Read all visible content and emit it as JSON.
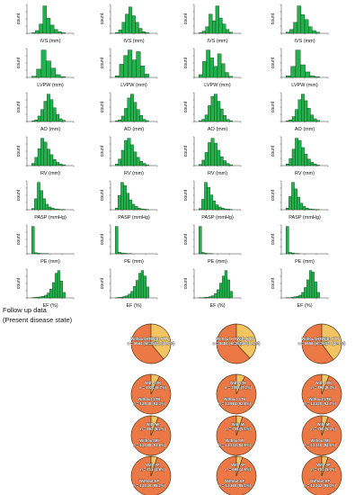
{
  "follow_up": {
    "line1": "Follow up data",
    "line2": "(Present disease state)"
  },
  "colors": {
    "histogram_fill": "#22b14c",
    "histogram_stroke": "#0a3d15",
    "pie_orange": "#ec7845",
    "pie_yellow": "#f2c462",
    "pie_stroke": "#5a3b1a",
    "label_text": "#ffffff"
  },
  "chart_data": {
    "type": "histogram-grid",
    "ylabel": "count",
    "columns": 4,
    "rows": [
      {
        "xlabel": "IVS (mm)",
        "col_heights": [
          [
            2,
            10,
            34,
            100,
            55,
            30,
            14,
            6,
            2
          ],
          [
            3,
            12,
            40,
            70,
            96,
            64,
            40,
            18,
            6,
            2
          ],
          [
            2,
            8,
            24,
            70,
            46,
            100,
            56,
            34,
            14,
            4
          ],
          [
            4,
            14,
            40,
            100,
            68,
            50,
            24,
            10,
            4
          ]
        ]
      },
      {
        "xlabel": "LVPW (mm)",
        "col_heights": [
          [
            4,
            30,
            100,
            60,
            34,
            10,
            3
          ],
          [
            6,
            48,
            80,
            100,
            64,
            94,
            42,
            12
          ],
          [
            10,
            58,
            100,
            72,
            40,
            86,
            50,
            18,
            4
          ],
          [
            6,
            40,
            100,
            46,
            20,
            6,
            2
          ]
        ]
      },
      {
        "xlabel": "AO (mm)",
        "col_heights": [
          [
            2,
            6,
            20,
            44,
            74,
            100,
            80,
            50,
            26,
            10,
            4
          ],
          [
            2,
            6,
            20,
            48,
            86,
            100,
            70,
            44,
            22,
            8,
            3
          ],
          [
            3,
            8,
            24,
            58,
            92,
            100,
            74,
            46,
            22,
            8,
            3
          ],
          [
            2,
            6,
            18,
            44,
            80,
            100,
            76,
            48,
            24,
            10,
            4
          ]
        ]
      },
      {
        "xlabel": "RV (mm)",
        "col_heights": [
          [
            8,
            30,
            62,
            100,
            86,
            60,
            40,
            22,
            12,
            6,
            3
          ],
          [
            6,
            24,
            56,
            92,
            100,
            76,
            50,
            30,
            16,
            8,
            3
          ],
          [
            4,
            20,
            48,
            84,
            100,
            82,
            56,
            32,
            18,
            8,
            3
          ],
          [
            6,
            26,
            60,
            100,
            92,
            66,
            42,
            24,
            12,
            6,
            2
          ]
        ]
      },
      {
        "xlabel": "PASP (mmHg)",
        "col_heights": [
          [
            4,
            40,
            100,
            70,
            40,
            20,
            10,
            6,
            3,
            2,
            1,
            1
          ],
          [
            6,
            52,
            100,
            88,
            60,
            36,
            20,
            12,
            6,
            3,
            2,
            1
          ],
          [
            4,
            38,
            100,
            82,
            54,
            32,
            18,
            10,
            6,
            3,
            2,
            1
          ],
          [
            6,
            48,
            100,
            76,
            46,
            24,
            12,
            6,
            3,
            2,
            1,
            1
          ]
        ]
      },
      {
        "xlabel": "PE (mm)",
        "col_heights": [
          [
            100,
            4,
            2,
            1,
            1,
            1,
            0,
            0,
            0,
            0,
            0,
            0
          ],
          [
            100,
            6,
            3,
            2,
            1,
            1,
            0,
            0,
            0,
            0,
            0,
            0
          ],
          [
            100,
            5,
            2,
            1,
            1,
            0,
            0,
            0,
            0,
            0,
            0,
            0
          ],
          [
            100,
            5,
            3,
            1,
            1,
            0,
            0,
            0,
            0,
            0,
            0,
            0
          ]
        ]
      },
      {
        "xlabel": "EF (%)",
        "col_heights": [
          [
            1,
            2,
            3,
            4,
            6,
            10,
            18,
            32,
            56,
            90,
            100,
            62,
            20
          ],
          [
            1,
            2,
            3,
            5,
            8,
            14,
            24,
            42,
            64,
            90,
            100,
            80,
            40
          ],
          [
            1,
            1,
            2,
            3,
            5,
            8,
            16,
            30,
            54,
            80,
            100,
            66,
            24
          ],
          [
            1,
            1,
            2,
            4,
            6,
            10,
            20,
            38,
            66,
            100,
            94,
            58,
            20
          ]
        ]
      }
    ],
    "pies": {
      "rows": [
        {
          "name": "HTN",
          "cells": [
            {
              "col": 1,
              "yellow_fraction": 0.39,
              "labels": [
                "Without HTN",
                "n = 8664 (61.3%)",
                "With HTN",
                "n = 5472 (38.7%)"
              ]
            },
            {
              "col": 2,
              "yellow_fraction": 0.38,
              "labels": [
                "Without HTN",
                "n = 8484 (61.8%)",
                "With HTN",
                "n = 5246 (38.2%)"
              ]
            },
            {
              "col": 3,
              "yellow_fraction": 0.4,
              "labels": [
                "Without HTN",
                "n = 8656 (60.0%)",
                "With HTN",
                "n = 5770 (40.0%)"
              ]
            }
          ]
        },
        {
          "name": "STK",
          "cells": [
            {
              "col": 1,
              "yellow_fraction": 0.07,
              "labels": [
                "With STK",
                "n = 1024 (6.7%)",
                "Without STK",
                "n = 13,048 (93.3%)"
              ]
            },
            {
              "col": 2,
              "yellow_fraction": 0.07,
              "labels": [
                "With STK",
                "n = 1008 (7.2%)",
                "Without STK",
                "n = 12,984 (92.8%)"
              ]
            },
            {
              "col": 3,
              "yellow_fraction": 0.06,
              "labels": [
                "With STK",
                "n = 898 (6.3%)",
                "Without STK",
                "n = 13,320 (93.7%)"
              ]
            }
          ]
        },
        {
          "name": "MI",
          "cells": [
            {
              "col": 1,
              "yellow_fraction": 0.06,
              "labels": [
                "With MI",
                "n = 862 (6.2%)",
                "Without MI",
                "n = 13,088 (93.8%)"
              ]
            },
            {
              "col": 2,
              "yellow_fraction": 0.05,
              "labels": [
                "With MI",
                "n = 708 (5.1%)",
                "Without MI",
                "n = 13,232 (94.9%)"
              ]
            },
            {
              "col": 3,
              "yellow_fraction": 0.05,
              "labels": [
                "With MI",
                "n = 760 (5.4%)",
                "Without MI",
                "n = 13,310 (94.6%)"
              ]
            }
          ]
        },
        {
          "name": "AF",
          "cells": [
            {
              "col": 1,
              "yellow_fraction": 0.05,
              "labels": [
                "With AF",
                "n = 713 (4.8%)",
                "Without AF",
                "n = 14,030 (95.2%)"
              ]
            },
            {
              "col": 2,
              "yellow_fraction": 0.05,
              "labels": [
                "With AF",
                "n = 690 (4.9%)",
                "Without AF",
                "n = 13,360 (95.1%)"
              ]
            },
            {
              "col": 3,
              "yellow_fraction": 0.05,
              "labels": [
                "With AF",
                "n = 702 (5.0%)",
                "Without AF",
                "n = 13,342 (95.0%)"
              ]
            }
          ]
        }
      ]
    }
  }
}
